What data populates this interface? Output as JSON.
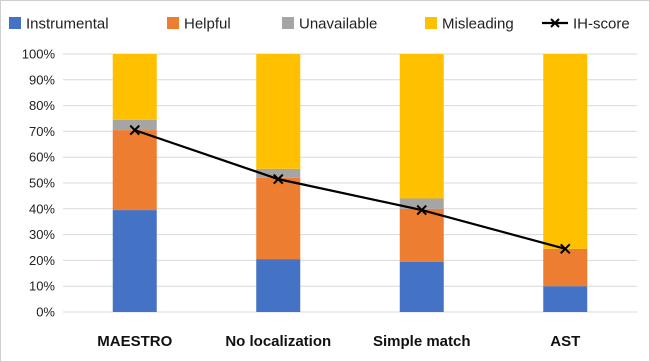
{
  "chart_data": {
    "type": "bar",
    "stacked": true,
    "categories": [
      "MAESTRO",
      "No localization",
      "Simple match",
      "AST"
    ],
    "series": [
      {
        "name": "Instrumental",
        "color": "#4472c4",
        "values": [
          39.5,
          20.5,
          19.5,
          10.0
        ]
      },
      {
        "name": "Helpful",
        "color": "#ed7d31",
        "values": [
          31.0,
          31.5,
          20.5,
          14.5
        ]
      },
      {
        "name": "Unavailable",
        "color": "#a5a5a5",
        "values": [
          4.0,
          3.5,
          4.0,
          0.0
        ]
      },
      {
        "name": "Misleading",
        "color": "#ffc000",
        "values": [
          25.5,
          44.5,
          56.0,
          75.5
        ]
      }
    ],
    "line_series": {
      "name": "IH-score",
      "color": "#000000",
      "marker": "x",
      "values": [
        70.5,
        51.5,
        39.5,
        24.5
      ]
    },
    "yticks": [
      "0%",
      "10%",
      "20%",
      "30%",
      "40%",
      "50%",
      "60%",
      "70%",
      "80%",
      "90%",
      "100%"
    ],
    "ylim": [
      0,
      100
    ],
    "grid": true,
    "legend_position": "top"
  }
}
